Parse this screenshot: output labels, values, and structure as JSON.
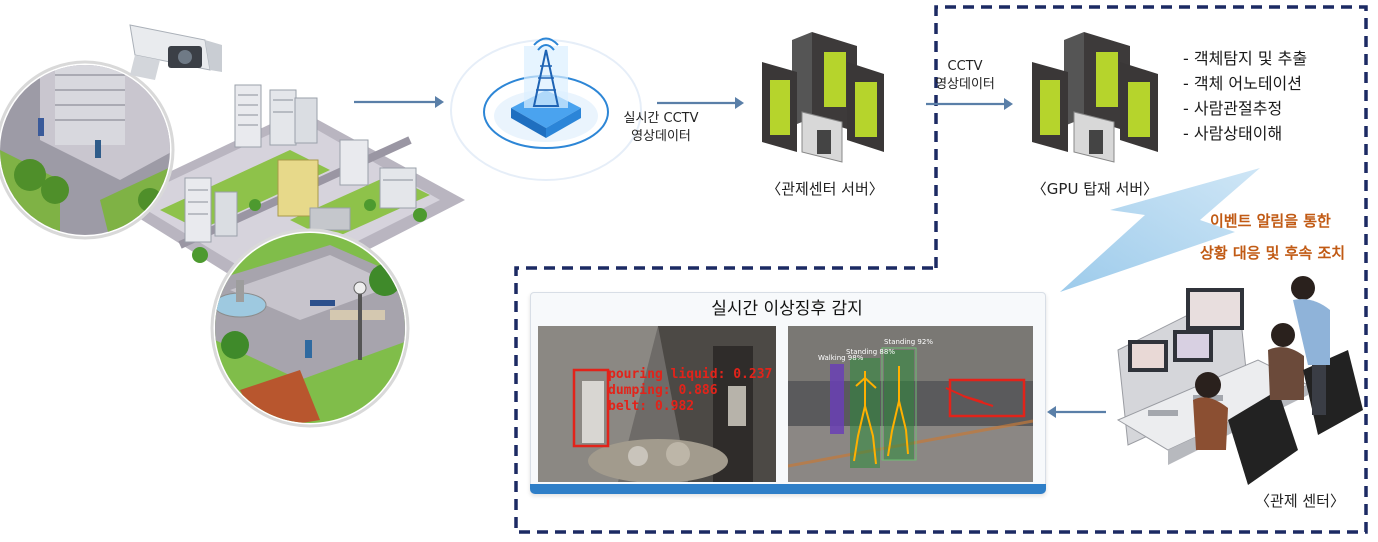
{
  "labels": {
    "realtime_cctv_line1": "실시간 CCTV",
    "realtime_cctv_line2": "영상데이터",
    "control_server": "〈관제센터 서버〉",
    "cctv_line1": "CCTV",
    "cctv_line2": "영상데이터",
    "gpu_server": "〈GPU 탑재 서버〉",
    "control_center": "〈관제 센터〉"
  },
  "gpu_tasks": [
    "- 객체탐지 및 추출",
    "- 객체 어노테이션",
    "- 사람관절추정",
    "- 사람상태이해"
  ],
  "event_text": {
    "line1": "이벤트 알림을 통한",
    "line2": "상황 대응 및 후속 조치"
  },
  "detection_panel": {
    "title": "실시간 이상징후 감지",
    "left_image_detections": [
      "pouring liquid: 0.237",
      "dumping: 0.886",
      "belt: 0.982"
    ],
    "right_image_tags": [
      "Standing 88%",
      "Standing 92%",
      "Walking 98%"
    ]
  },
  "colors": {
    "arrow": "#5a7fa8",
    "dashed_border": "#1c2a63",
    "accent_orange": "#c15a14",
    "server_green": "#b6d42c",
    "panel_bar": "#2f7fc8",
    "detection_red": "#e2231a"
  }
}
